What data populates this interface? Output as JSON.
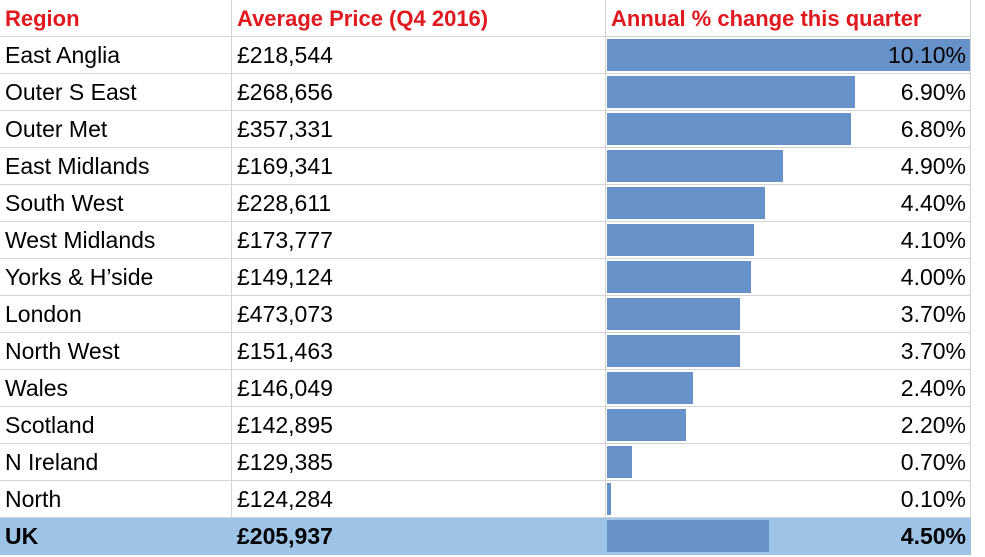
{
  "headers": {
    "region": "Region",
    "price": "Average Price (Q4 2016)",
    "change": "Annual % change this quarter"
  },
  "rows": [
    {
      "region": "East Anglia",
      "price": "£218,544",
      "change": "10.10%"
    },
    {
      "region": "Outer S East",
      "price": "£268,656",
      "change": "6.90%"
    },
    {
      "region": "Outer Met",
      "price": "£357,331",
      "change": "6.80%"
    },
    {
      "region": "East Midlands",
      "price": "£169,341",
      "change": "4.90%"
    },
    {
      "region": "South West",
      "price": "£228,611",
      "change": "4.40%"
    },
    {
      "region": "West Midlands",
      "price": "£173,777",
      "change": "4.10%"
    },
    {
      "region": "Yorks & H’side",
      "price": "£149,124",
      "change": "4.00%"
    },
    {
      "region": "London",
      "price": "£473,073",
      "change": "3.70%"
    },
    {
      "region": "North West",
      "price": "£151,463",
      "change": "3.70%"
    },
    {
      "region": "Wales",
      "price": "£146,049",
      "change": "2.40%"
    },
    {
      "region": "Scotland",
      "price": "£142,895",
      "change": "2.20%"
    },
    {
      "region": "N Ireland",
      "price": "£129,385",
      "change": "0.70%"
    },
    {
      "region": "North",
      "price": "£124,284",
      "change": "0.10%"
    }
  ],
  "total": {
    "region": "UK",
    "price": "£205,937",
    "change": "4.50%"
  },
  "colors": {
    "header_text": "#e0191f",
    "bar": "#6691c9",
    "total_row": "#9dc3e6"
  },
  "chart_data": {
    "type": "table",
    "columns": [
      "Region",
      "Average Price (Q4 2016)",
      "Annual % change this quarter"
    ],
    "categories": [
      "East Anglia",
      "Outer S East",
      "Outer Met",
      "East Midlands",
      "South West",
      "West Midlands",
      "Yorks & H’side",
      "London",
      "North West",
      "Wales",
      "Scotland",
      "N Ireland",
      "North",
      "UK"
    ],
    "average_price": [
      218544,
      268656,
      357331,
      169341,
      228611,
      173777,
      149124,
      473073,
      151463,
      146049,
      142895,
      129385,
      124284,
      205937
    ],
    "annual_change_pct": [
      10.1,
      6.9,
      6.8,
      4.9,
      4.4,
      4.1,
      4.0,
      3.7,
      3.7,
      2.4,
      2.2,
      0.7,
      0.1,
      4.5
    ],
    "bar_max": 10.1
  }
}
